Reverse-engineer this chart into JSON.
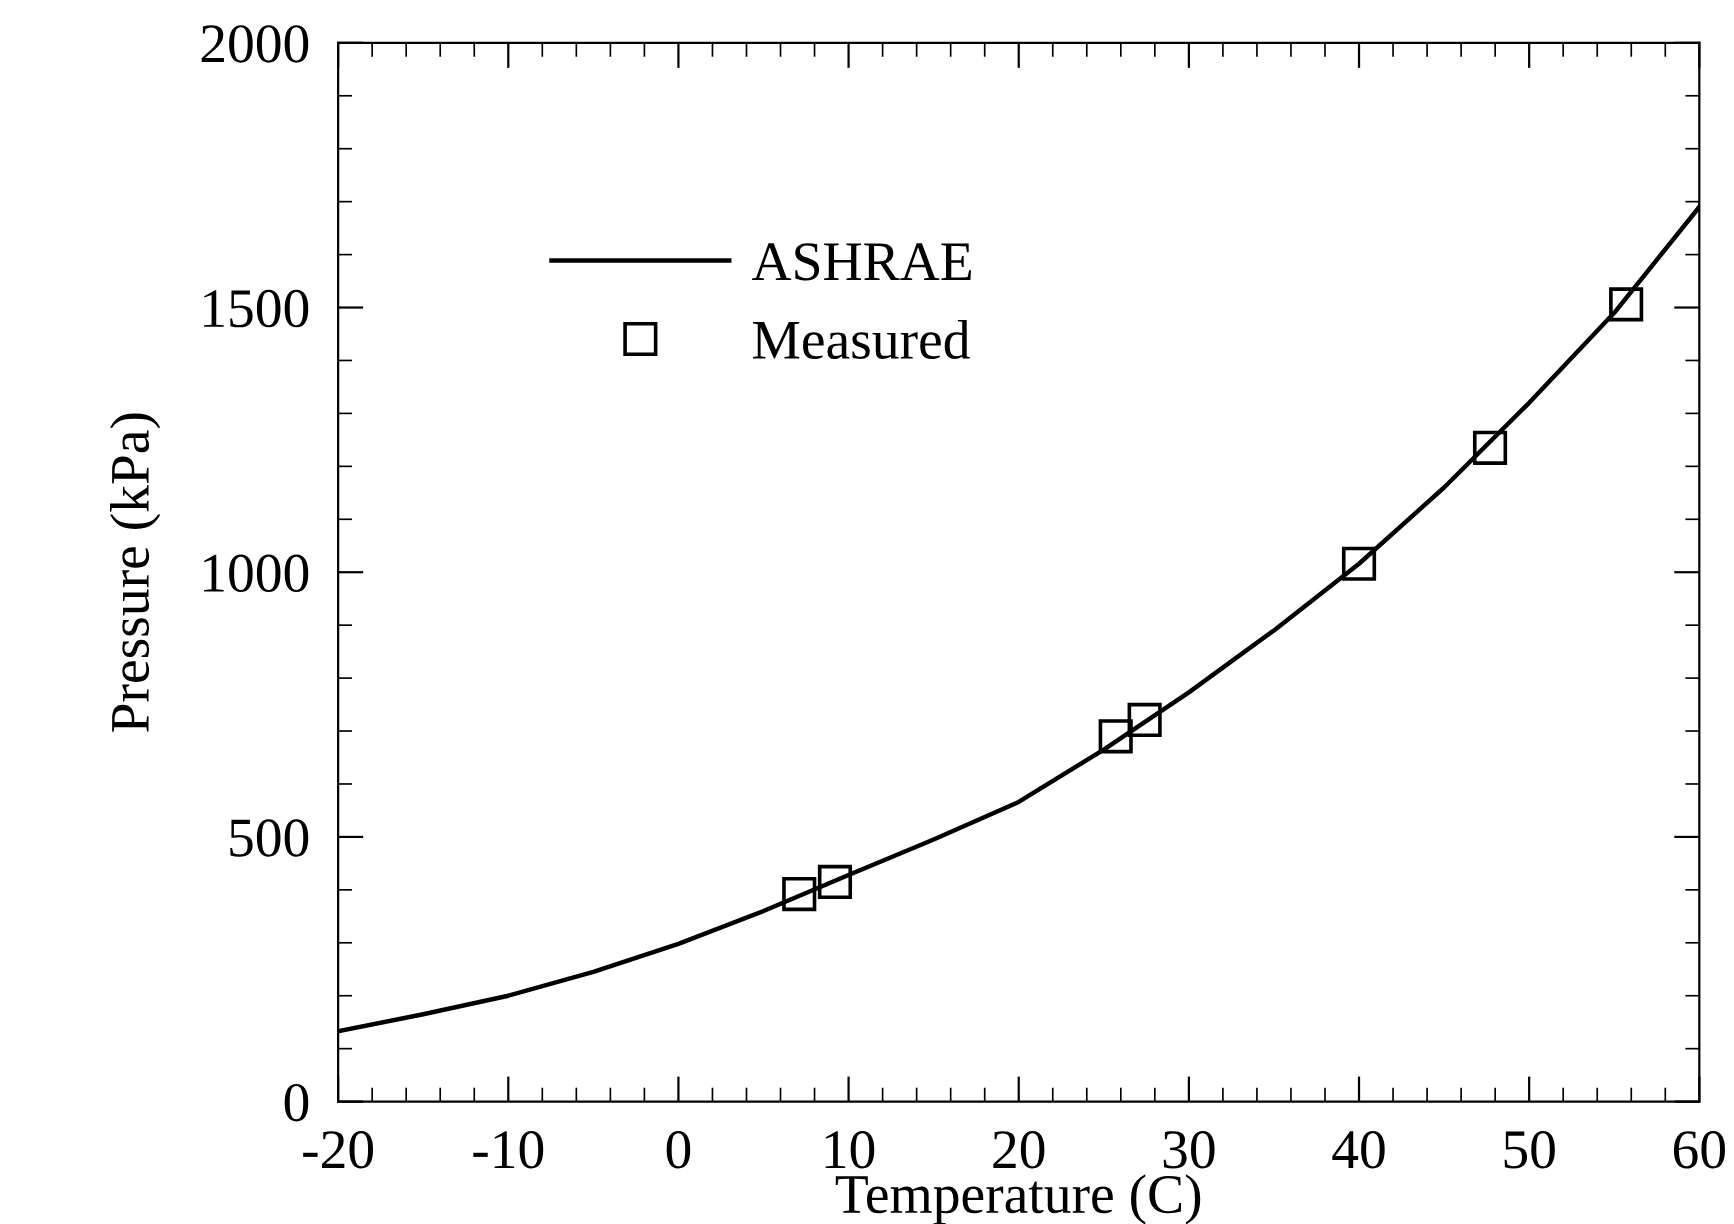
{
  "chart_data": {
    "type": "line",
    "xlabel": "Temperature (C)",
    "ylabel": "Pressure (kPa)",
    "xlim": [
      -20,
      60
    ],
    "xticks": [
      -20,
      -10,
      0,
      10,
      20,
      30,
      40,
      50,
      60
    ],
    "ylim": [
      0,
      2000
    ],
    "yticks": [
      0,
      500,
      1000,
      1500,
      2000
    ],
    "grid": false,
    "legend": "top left",
    "series": [
      {
        "name": "ASHRAE",
        "color": "#000000",
        "marker": "none",
        "line_style": "solid",
        "x": [
          -20,
          -15,
          -10,
          -5,
          0,
          5,
          10,
          15,
          20,
          25,
          30,
          35,
          40,
          45,
          50,
          55,
          60
        ],
        "values": [
          133,
          165,
          200,
          245,
          298,
          360,
          428,
          495,
          566,
          665,
          773,
          890,
          1016,
          1160,
          1320,
          1490,
          1690
        ]
      },
      {
        "name": "Measured",
        "type": "scatter",
        "color": "#000000",
        "marker": "square",
        "x": [
          7.1,
          9.2,
          25.7,
          27.4,
          40.0,
          47.7,
          55.7
        ],
        "values": [
          392,
          415,
          690,
          721,
          1016,
          1235,
          1506
        ]
      }
    ]
  }
}
